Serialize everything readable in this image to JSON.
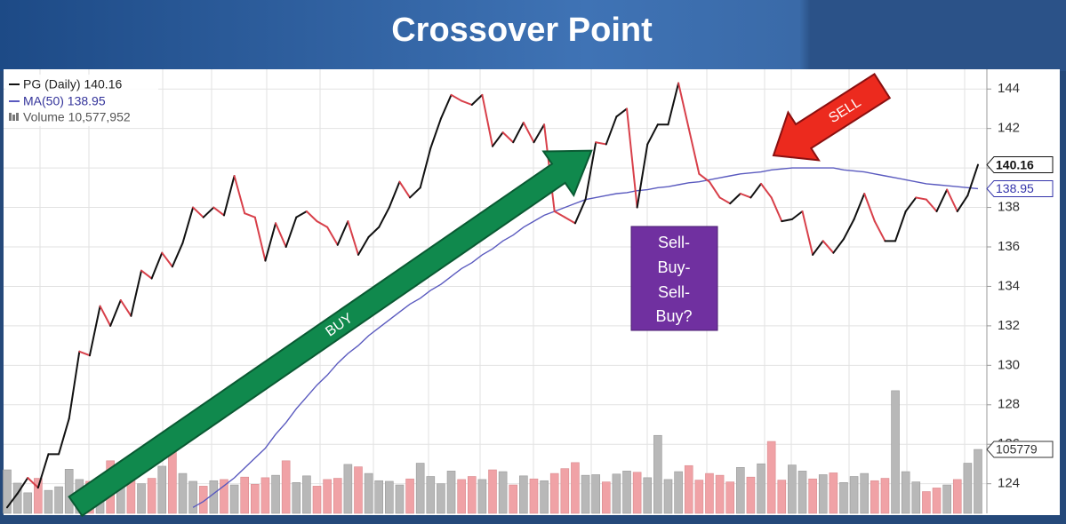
{
  "title": "Crossover Point",
  "chart_data": {
    "type": "line",
    "series": [
      {
        "name": "PG (Daily) 140.16",
        "color": "#111111",
        "down_color": "#d8404a",
        "values": [
          122.8,
          123.5,
          124.3,
          123.8,
          125.5,
          125.5,
          127.3,
          130.7,
          130.5,
          133,
          132,
          133.3,
          132.5,
          134.8,
          134.4,
          135.7,
          135,
          136.2,
          138,
          137.5,
          138,
          137.6,
          139.6,
          137.7,
          137.5,
          135.3,
          137.2,
          136,
          137.5,
          137.8,
          137.3,
          137,
          136.1,
          137.3,
          135.6,
          136.5,
          137,
          138,
          139.3,
          138.5,
          139,
          141,
          142.5,
          143.7,
          143.4,
          143.2,
          143.7,
          141.1,
          141.8,
          141.3,
          142.3,
          141.3,
          142.2,
          137.8,
          137.5,
          137.2,
          138.4,
          141.3,
          141.2,
          142.6,
          143,
          138,
          141.2,
          142.2,
          142.2,
          144.3,
          142,
          139.7,
          139.3,
          138.5,
          138.2,
          138.7,
          138.5,
          139.2,
          138.5,
          137.3,
          137.4,
          137.8,
          135.6,
          136.3,
          135.7,
          136.4,
          137.4,
          138.7,
          137.3,
          136.3,
          136.3,
          137.8,
          138.5,
          138.4,
          137.8,
          138.9,
          137.8,
          138.6,
          140.16
        ]
      },
      {
        "name": "MA(50) 138.95",
        "color": "#5a5abf",
        "values": [
          null,
          null,
          null,
          null,
          null,
          null,
          null,
          null,
          null,
          null,
          null,
          null,
          null,
          null,
          null,
          null,
          null,
          null,
          122.8,
          123.1,
          123.5,
          123.9,
          124.3,
          124.8,
          125.3,
          125.8,
          126.5,
          127.1,
          127.8,
          128.4,
          129.0,
          129.5,
          130.1,
          130.6,
          131.0,
          131.5,
          131.9,
          132.3,
          132.7,
          133.1,
          133.4,
          133.8,
          134.1,
          134.5,
          134.9,
          135.2,
          135.6,
          135.9,
          136.3,
          136.6,
          137.0,
          137.3,
          137.6,
          137.8,
          138.0,
          138.2,
          138.4,
          138.5,
          138.6,
          138.7,
          138.75,
          138.85,
          138.9,
          139.0,
          139.05,
          139.15,
          139.25,
          139.3,
          139.4,
          139.5,
          139.6,
          139.7,
          139.75,
          139.8,
          139.9,
          139.95,
          140.0,
          140.0,
          140.0,
          140.0,
          140.0,
          139.9,
          139.85,
          139.8,
          139.7,
          139.6,
          139.5,
          139.4,
          139.3,
          139.2,
          139.15,
          139.1,
          139.05,
          139.0,
          138.95
        ]
      }
    ],
    "volume": {
      "name": "Volume 10,577,952",
      "tag": "105779",
      "up_color": "#b8b8b8",
      "down_color": "#f0a2a6",
      "values": [
        7200000,
        5000000,
        3400000,
        5800000,
        3800000,
        4400000,
        7300000,
        5600000,
        5300000,
        6000000,
        8700000,
        6600000,
        5600000,
        4900000,
        5800000,
        7800000,
        10300000,
        6600000,
        5300000,
        4500000,
        5400000,
        5600000,
        4700000,
        6000000,
        4800000,
        5900000,
        6300000,
        8700000,
        5100000,
        6200000,
        4500000,
        5600000,
        5800000,
        8100000,
        7700000,
        6600000,
        5400000,
        5300000,
        4700000,
        5700000,
        8300000,
        6100000,
        4900000,
        7000000,
        5600000,
        6100000,
        5600000,
        7200000,
        6900000,
        4700000,
        6200000,
        5700000,
        5400000,
        6600000,
        7400000,
        8400000,
        6300000,
        6400000,
        5200000,
        6500000,
        7000000,
        6800000,
        5900000,
        12900000,
        5600000,
        6900000,
        7900000,
        5500000,
        6600000,
        6300000,
        5200000,
        7600000,
        6000000,
        8200000,
        11900000,
        5500000,
        8000000,
        7000000,
        5700000,
        6400000,
        6700000,
        5100000,
        6100000,
        6600000,
        5400000,
        5800000,
        20300000,
        6900000,
        5200000,
        3600000,
        4200000,
        4700000,
        5600000,
        8300000,
        10577952
      ]
    },
    "volume_lim": [
      0,
      73500000
    ],
    "ylim": [
      122.5,
      145
    ],
    "yticks": [
      124,
      126,
      128,
      130,
      132,
      134,
      136,
      138,
      140,
      142,
      144
    ],
    "grid": true,
    "annotations": {
      "buy": "BUY",
      "sell": "SELL",
      "note": [
        "Sell-",
        "Buy-",
        "Sell-",
        "Buy?"
      ]
    }
  }
}
